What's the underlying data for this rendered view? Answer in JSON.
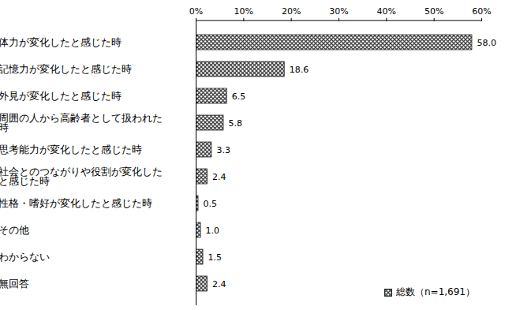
{
  "chart_data": {
    "type": "bar",
    "orientation": "horizontal",
    "categories": [
      "体力が変化したと感じた時",
      "記憶力が変化したと感じた時",
      "外見が変化したと感じた時",
      "周囲の人から高齢者として扱われた時",
      "思考能力が変化したと感じた時",
      "社会とのつながりや役割が変化したと感じた時",
      "性格・嗜好が変化したと感じた時",
      "その他",
      "わからない",
      "無回答"
    ],
    "series": [
      {
        "name": "総数（n=1,691）",
        "color": "#444444",
        "values": [
          58.0,
          18.6,
          6.5,
          5.8,
          3.3,
          2.4,
          0.5,
          1.0,
          1.5,
          2.4
        ],
        "value_labels": [
          "58.0",
          "18.6",
          "6.5",
          "5.8",
          "3.3",
          "2.4",
          "0.5",
          "1.0",
          "1.5",
          "2.4"
        ]
      }
    ],
    "xlim": [
      0,
      60
    ],
    "xticks": [
      {
        "value": 0,
        "label": "0%"
      },
      {
        "value": 10,
        "label": "10%"
      },
      {
        "value": 20,
        "label": "20%"
      },
      {
        "value": 30,
        "label": "30%"
      },
      {
        "value": 40,
        "label": "40%"
      },
      {
        "value": 50,
        "label": "50%"
      },
      {
        "value": 60,
        "label": "60%"
      }
    ],
    "data_labels": true,
    "legend": "bottom-right",
    "grid": false
  }
}
